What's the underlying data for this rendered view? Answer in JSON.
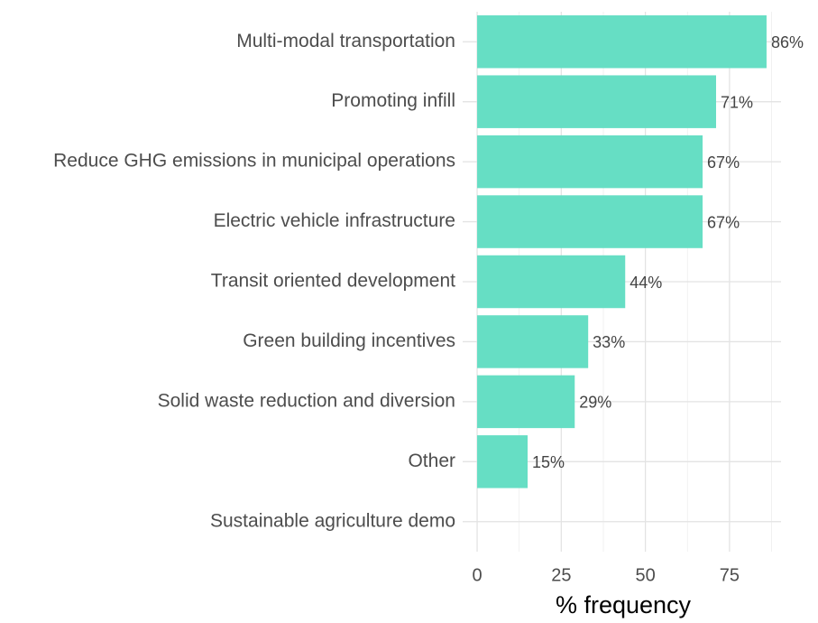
{
  "chart_data": {
    "type": "barh",
    "x_label": "% frequency",
    "categories": [
      "Multi-modal transportation",
      "Promoting infill",
      "Reduce GHG emissions in municipal operations",
      "Electric vehicle infrastructure",
      "Transit oriented development",
      "Green building incentives",
      "Solid waste reduction and diversion",
      "Other",
      "Sustainable agriculture demo"
    ],
    "values": [
      86,
      71,
      67,
      67,
      44,
      33,
      29,
      15,
      0
    ],
    "value_labels": [
      "86%",
      "71%",
      "67%",
      "67%",
      "44%",
      "33%",
      "29%",
      "15%",
      null
    ],
    "color": "#66dec4",
    "xlim": [
      -4.3,
      90.3
    ],
    "xticks": [
      0,
      25,
      50,
      75
    ],
    "xminor": [
      12.5,
      37.5,
      62.5,
      87.5
    ],
    "grid": true
  }
}
